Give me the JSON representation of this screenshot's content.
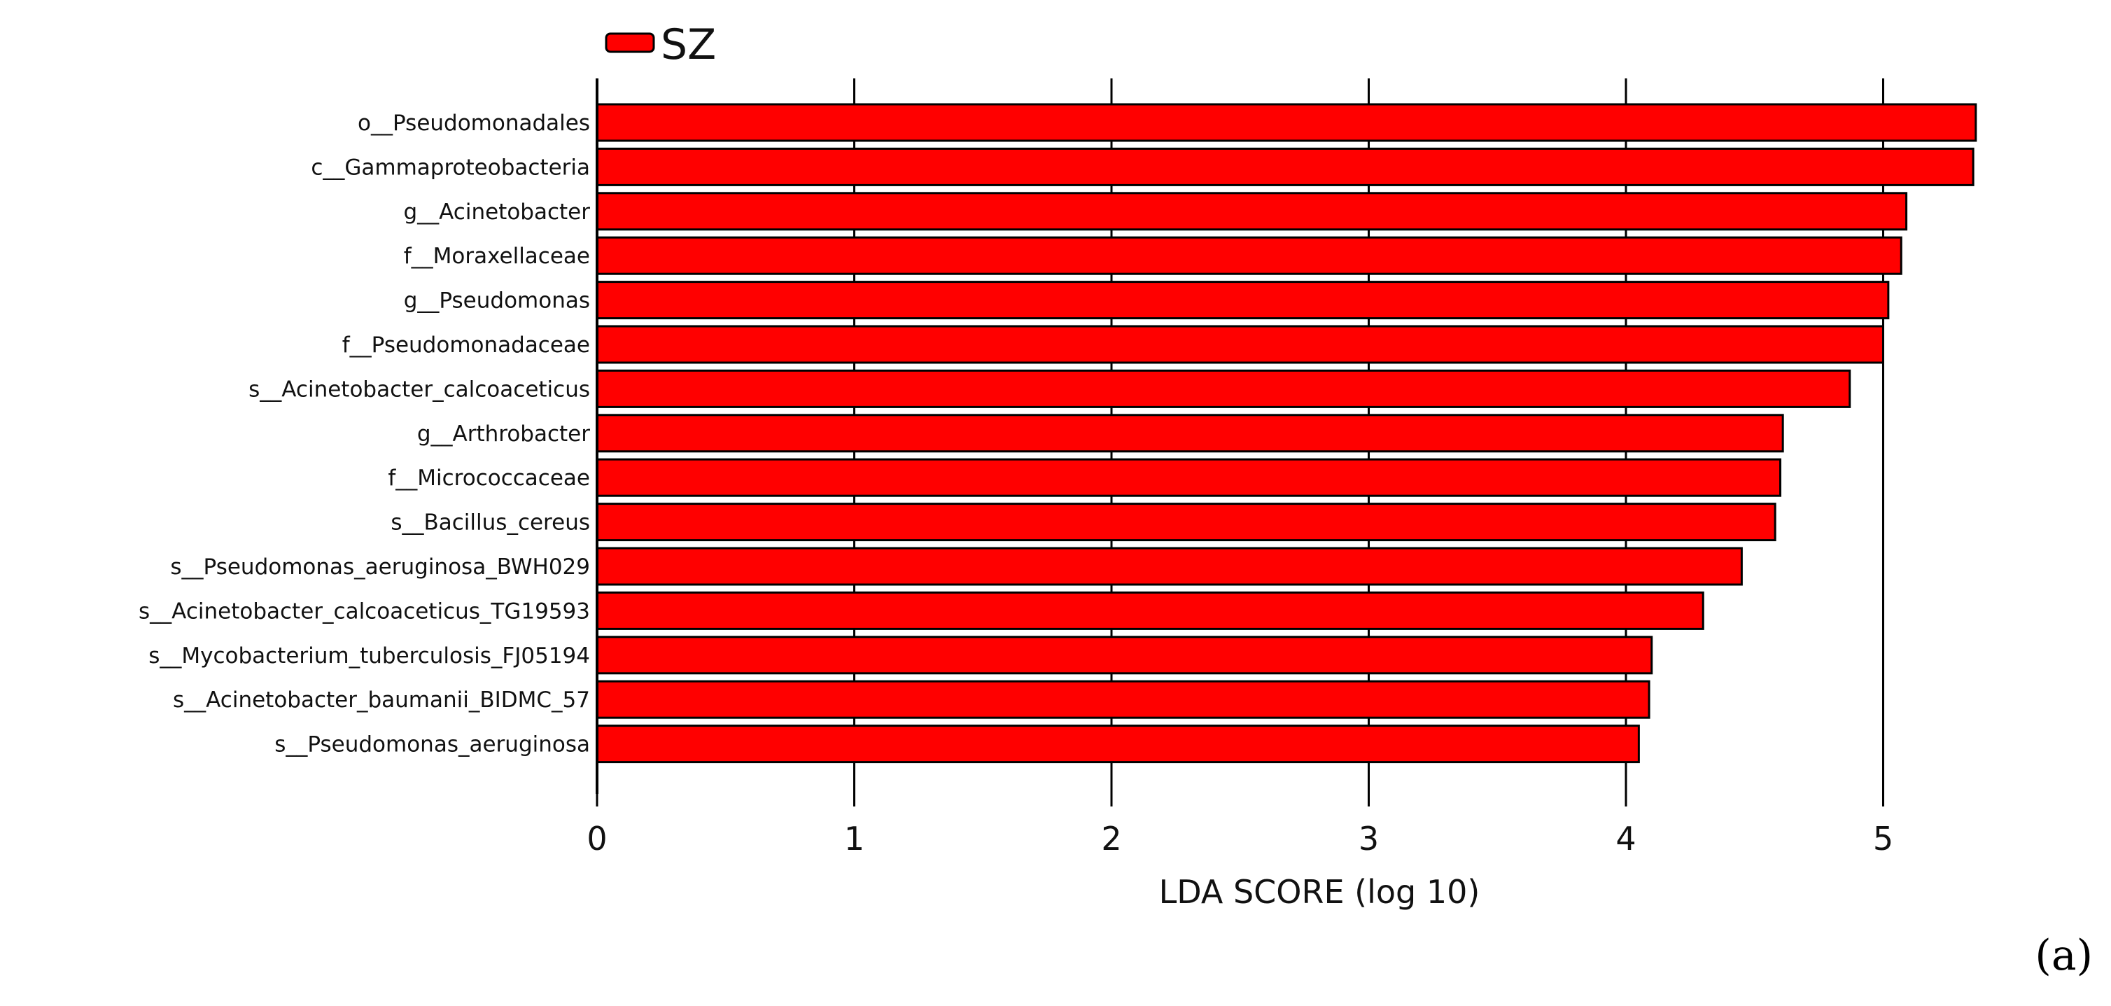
{
  "chart_data": {
    "type": "bar",
    "orientation": "horizontal",
    "title": "",
    "xlabel": "LDA SCORE (log 10)",
    "ylabel": "",
    "xlim": [
      0,
      5.4
    ],
    "x_ticks": [
      0,
      1,
      2,
      3,
      4,
      5
    ],
    "grid": "vertical",
    "legend_position": "top-left",
    "panel_label": "(a)",
    "bar_color": "#ff0000",
    "series": [
      {
        "name": "SZ",
        "color": "#ff0000"
      }
    ],
    "categories": [
      "o__Pseudomonadales",
      "c__Gammaproteobacteria",
      "g__Acinetobacter",
      "f__Moraxellaceae",
      "g__Pseudomonas",
      "f__Pseudomonadaceae",
      "s__Acinetobacter_calcoaceticus",
      "g__Arthrobacter",
      "f__Micrococcaceae",
      "s__Bacillus_cereus",
      "s__Pseudomonas_aeruginosa_BWH029",
      "s__Acinetobacter_calcoaceticus_TG19593",
      "s__Mycobacterium_tuberculosis_FJ05194",
      "s__Acinetobacter_baumanii_BIDMC_57",
      "s__Pseudomonas_aeruginosa"
    ],
    "values": [
      5.36,
      5.35,
      5.09,
      5.07,
      5.02,
      5.0,
      4.87,
      4.61,
      4.6,
      4.58,
      4.45,
      4.3,
      4.1,
      4.09,
      4.05
    ]
  }
}
